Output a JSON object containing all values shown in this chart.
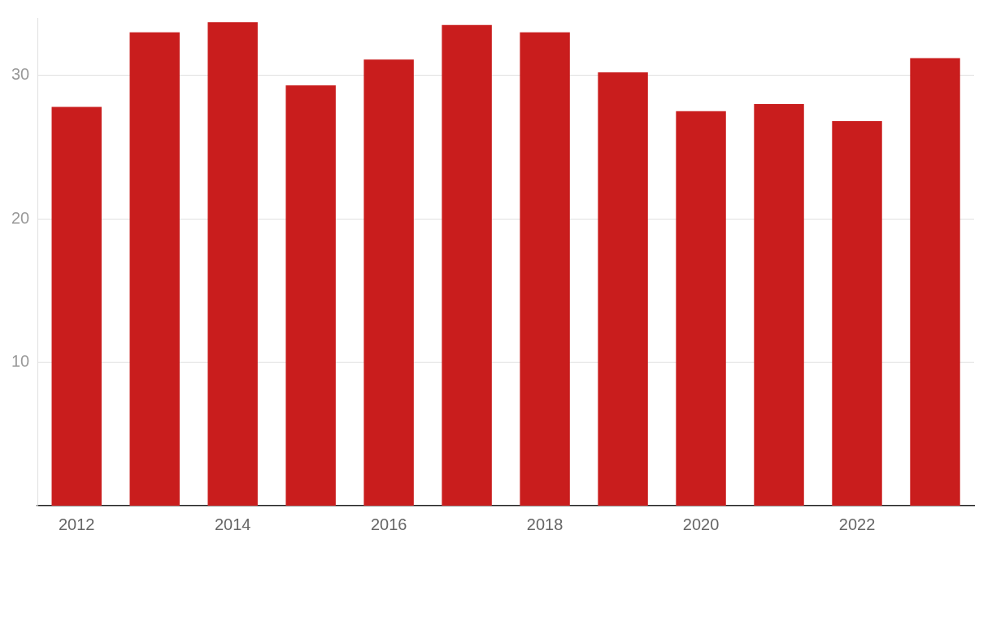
{
  "chart_data": {
    "type": "bar",
    "categories": [
      "2012",
      null,
      "2014",
      null,
      "2016",
      null,
      "2018",
      null,
      "2020",
      null,
      "2022",
      null
    ],
    "values": [
      27.8,
      33.0,
      33.7,
      29.3,
      31.1,
      33.5,
      33.0,
      30.2,
      27.5,
      28.0,
      26.8,
      31.2
    ],
    "color": "#c91d1d",
    "ylim": [
      0,
      34
    ],
    "yticks": [
      10,
      20,
      30
    ],
    "grid": "y"
  }
}
